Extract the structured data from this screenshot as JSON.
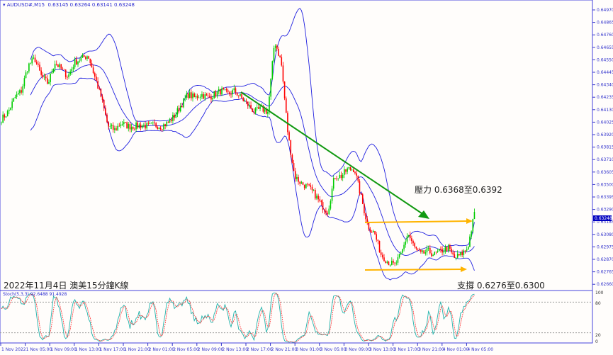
{
  "header": {
    "symbol_label": "AUDUSD#,M15",
    "ohlc": "0.63145 0.63264 0.63141 0.63248"
  },
  "annotations": {
    "resistance": "壓力 0.6368至0.6392",
    "support": "支撐 0.6276至0.6300",
    "caption": "2022年11月4日 澳美15分鐘K線"
  },
  "indicator": {
    "label": "Stoch(5,3,3) 92.6488 91.4928",
    "levels": [
      "100",
      "80",
      "20",
      "0"
    ]
  },
  "colors": {
    "bull": "#00cc00",
    "bear": "#ff0000",
    "bands": "#2020e0",
    "trend_arrow": "#119911",
    "level_lines": "#ffb400",
    "stoch_main": "#20b2aa",
    "stoch_signal": "#ff3030",
    "axis": "#3333cc"
  },
  "chart_data": {
    "type": "candlestick",
    "timeframe": "M15",
    "current_price": "0.63248",
    "y_ticks": [
      "0.64970",
      "0.64865",
      "0.64760",
      "0.64655",
      "0.64550",
      "0.64445",
      "0.64340",
      "0.64235",
      "0.64130",
      "0.64025",
      "0.63920",
      "0.63815",
      "0.63710",
      "0.63605",
      "0.63500",
      "0.63395",
      "0.63290",
      "0.63185",
      "0.63080",
      "0.62975",
      "0.62870",
      "0.62765",
      "0.62660"
    ],
    "x_ticks": [
      "1 Nov 2022",
      "1 Nov 05:00",
      "1 Nov 09:00",
      "1 Nov 13:00",
      "1 Nov 17:00",
      "1 Nov 21:00",
      "2 Nov 01:00",
      "2 Nov 05:00",
      "2 Nov 09:00",
      "2 Nov 13:00",
      "2 Nov 17:00",
      "2 Nov 21:00",
      "3 Nov 01:00",
      "3 Nov 05:00",
      "3 Nov 09:00",
      "3 Nov 13:00",
      "3 Nov 17:00",
      "3 Nov 21:00",
      "4 Nov 01:00",
      "4 Nov 05:00"
    ],
    "approx_close_path": [
      0.6405,
      0.6411,
      0.6423,
      0.6429,
      0.645,
      0.6456,
      0.6441,
      0.6435,
      0.6453,
      0.6447,
      0.6441,
      0.6453,
      0.6456,
      0.6459,
      0.6441,
      0.6423,
      0.6399,
      0.6396,
      0.6402,
      0.6399,
      0.6399,
      0.64,
      0.6399,
      0.64,
      0.6399,
      0.6402,
      0.6408,
      0.6417,
      0.6426,
      0.6423,
      0.6426,
      0.6423,
      0.6426,
      0.6429,
      0.6426,
      0.6429,
      0.6423,
      0.6417,
      0.6411,
      0.6414,
      0.6411,
      0.6471,
      0.6453,
      0.6393,
      0.6357,
      0.6351,
      0.6348,
      0.6342,
      0.6333,
      0.6327,
      0.6357,
      0.6357,
      0.6363,
      0.6363,
      0.6339,
      0.6315,
      0.6309,
      0.6291,
      0.6285,
      0.6282,
      0.6291,
      0.6309,
      0.6297,
      0.6291,
      0.6294,
      0.6291,
      0.6294,
      0.6297,
      0.6288,
      0.6291,
      0.6297,
      0.6325
    ]
  }
}
